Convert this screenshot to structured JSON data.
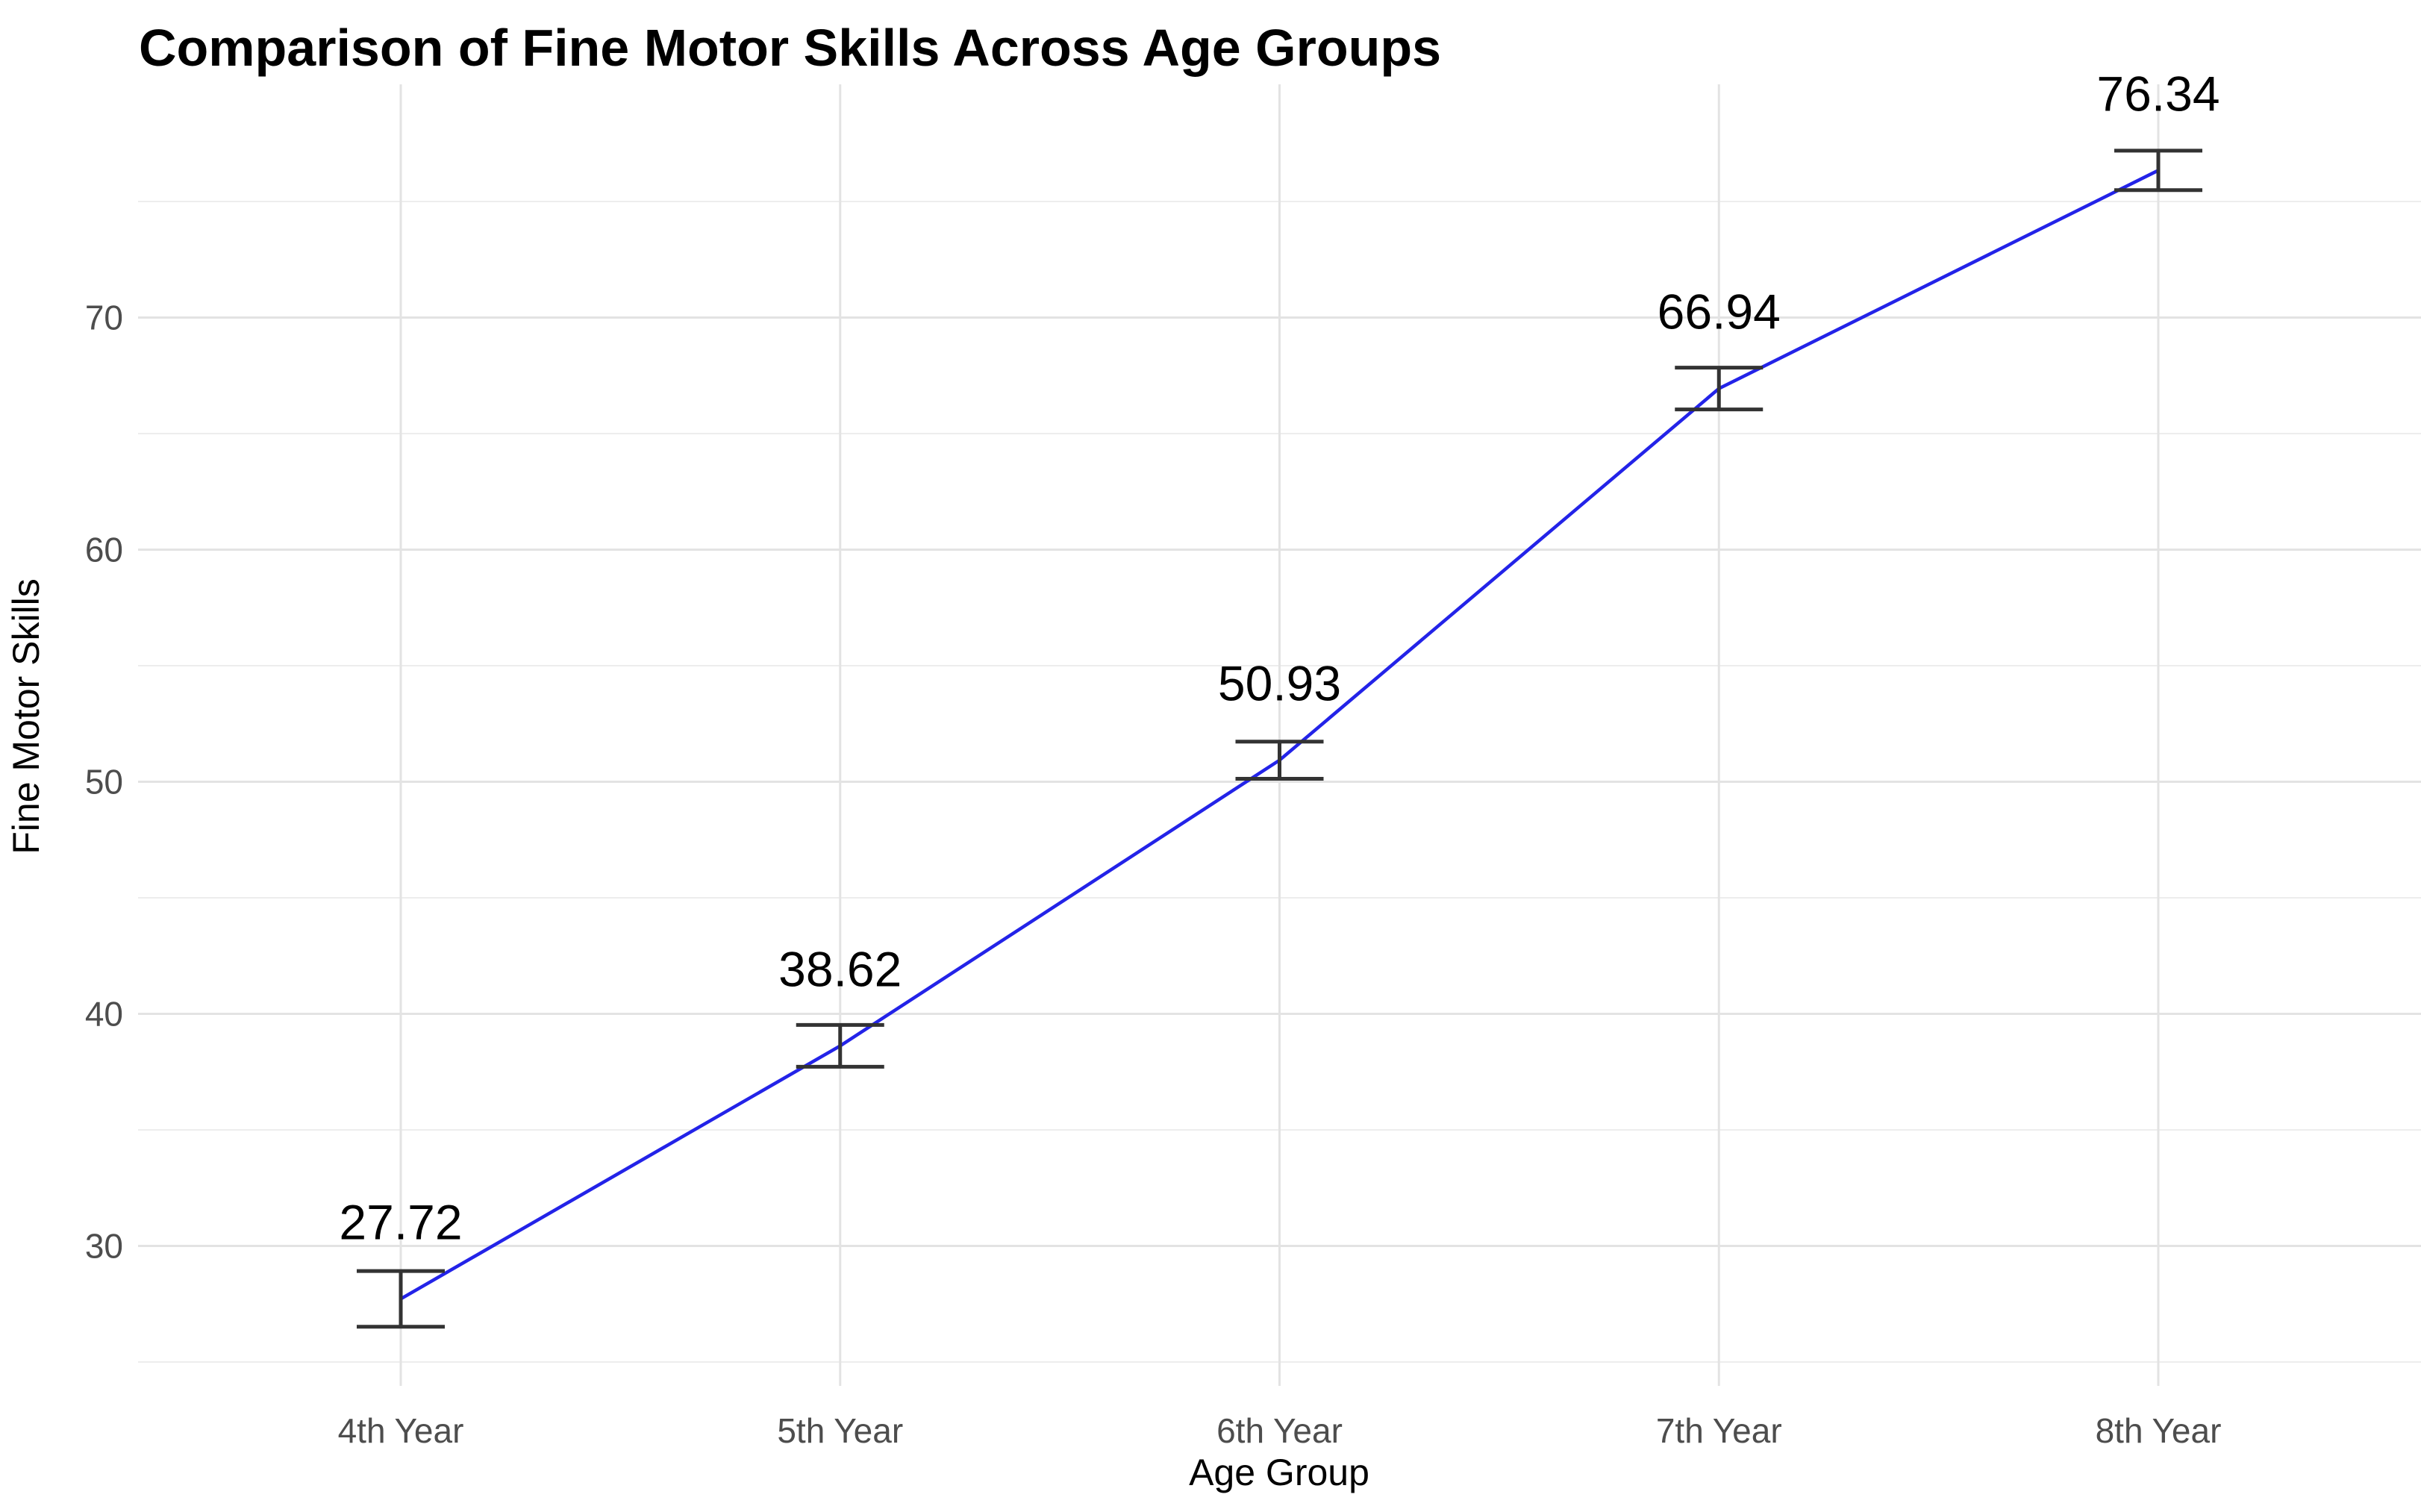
{
  "chart_data": {
    "type": "line",
    "title": "Comparison of Fine Motor Skills Across Age Groups",
    "xlabel": "Age Group",
    "ylabel": "Fine Motor Skills",
    "categories": [
      "4th Year",
      "5th Year",
      "6th Year",
      "7th Year",
      "8th Year"
    ],
    "series": [
      {
        "name": "Fine Motor Skills",
        "values": [
          27.72,
          38.62,
          50.93,
          66.94,
          76.34
        ],
        "errors": [
          1.2,
          0.9,
          0.8,
          0.9,
          0.85
        ]
      }
    ],
    "data_labels": [
      "27.72",
      "38.62",
      "50.93",
      "66.94",
      "76.34"
    ],
    "y_ticks": [
      30,
      40,
      50,
      60,
      70
    ],
    "y_minor_ticks": [
      25,
      35,
      45,
      55,
      65,
      75
    ],
    "ylim": [
      23.9,
      80.1
    ],
    "grid": "horizontal major+minor, vertical major at categories",
    "legend_position": "none",
    "colors": {
      "line": "#2323e8",
      "error_bar": "#333333",
      "grid_major": "#e3e3e3",
      "grid_minor": "#ededed",
      "tick_label": "#4d4d4d",
      "text": "#000000",
      "background": "#ffffff"
    }
  }
}
